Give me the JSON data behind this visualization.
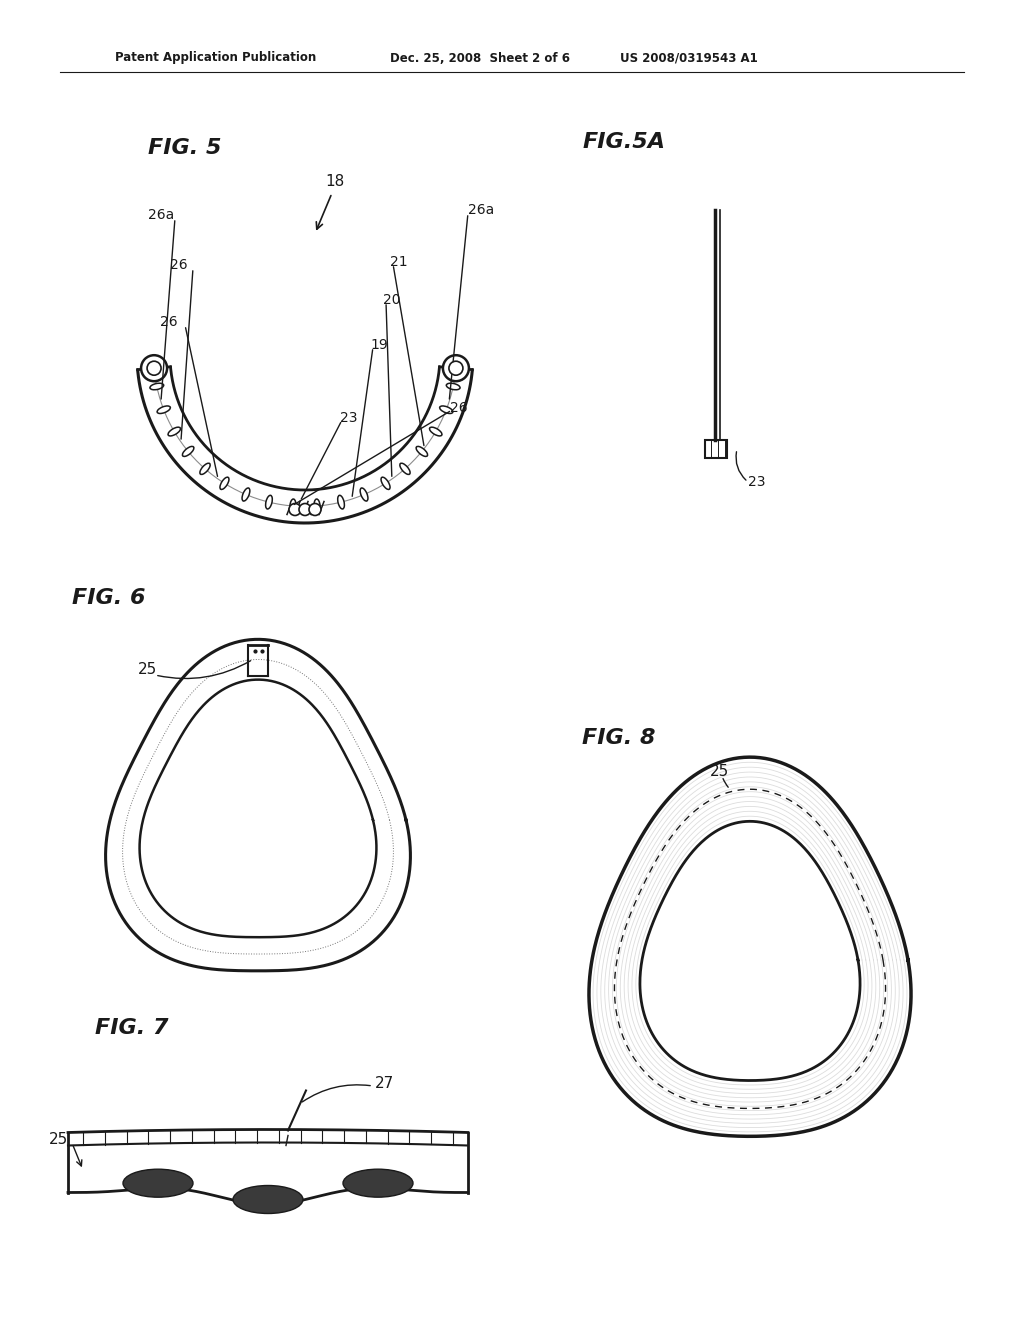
{
  "bg_color": "#ffffff",
  "text_color": "#000000",
  "header_left": "Patent Application Publication",
  "header_mid": "Dec. 25, 2008  Sheet 2 of 6",
  "header_right": "US 2008/0319543 A1",
  "fig5_label": "FIG. 5",
  "fig5a_label": "FIG.5A",
  "fig6_label": "FIG. 6",
  "fig7_label": "FIG. 7",
  "fig8_label": "FIG. 8",
  "line_color": "#1a1a1a",
  "dark_color": "#333333",
  "gray_color": "#888888",
  "light_gray": "#cccccc"
}
